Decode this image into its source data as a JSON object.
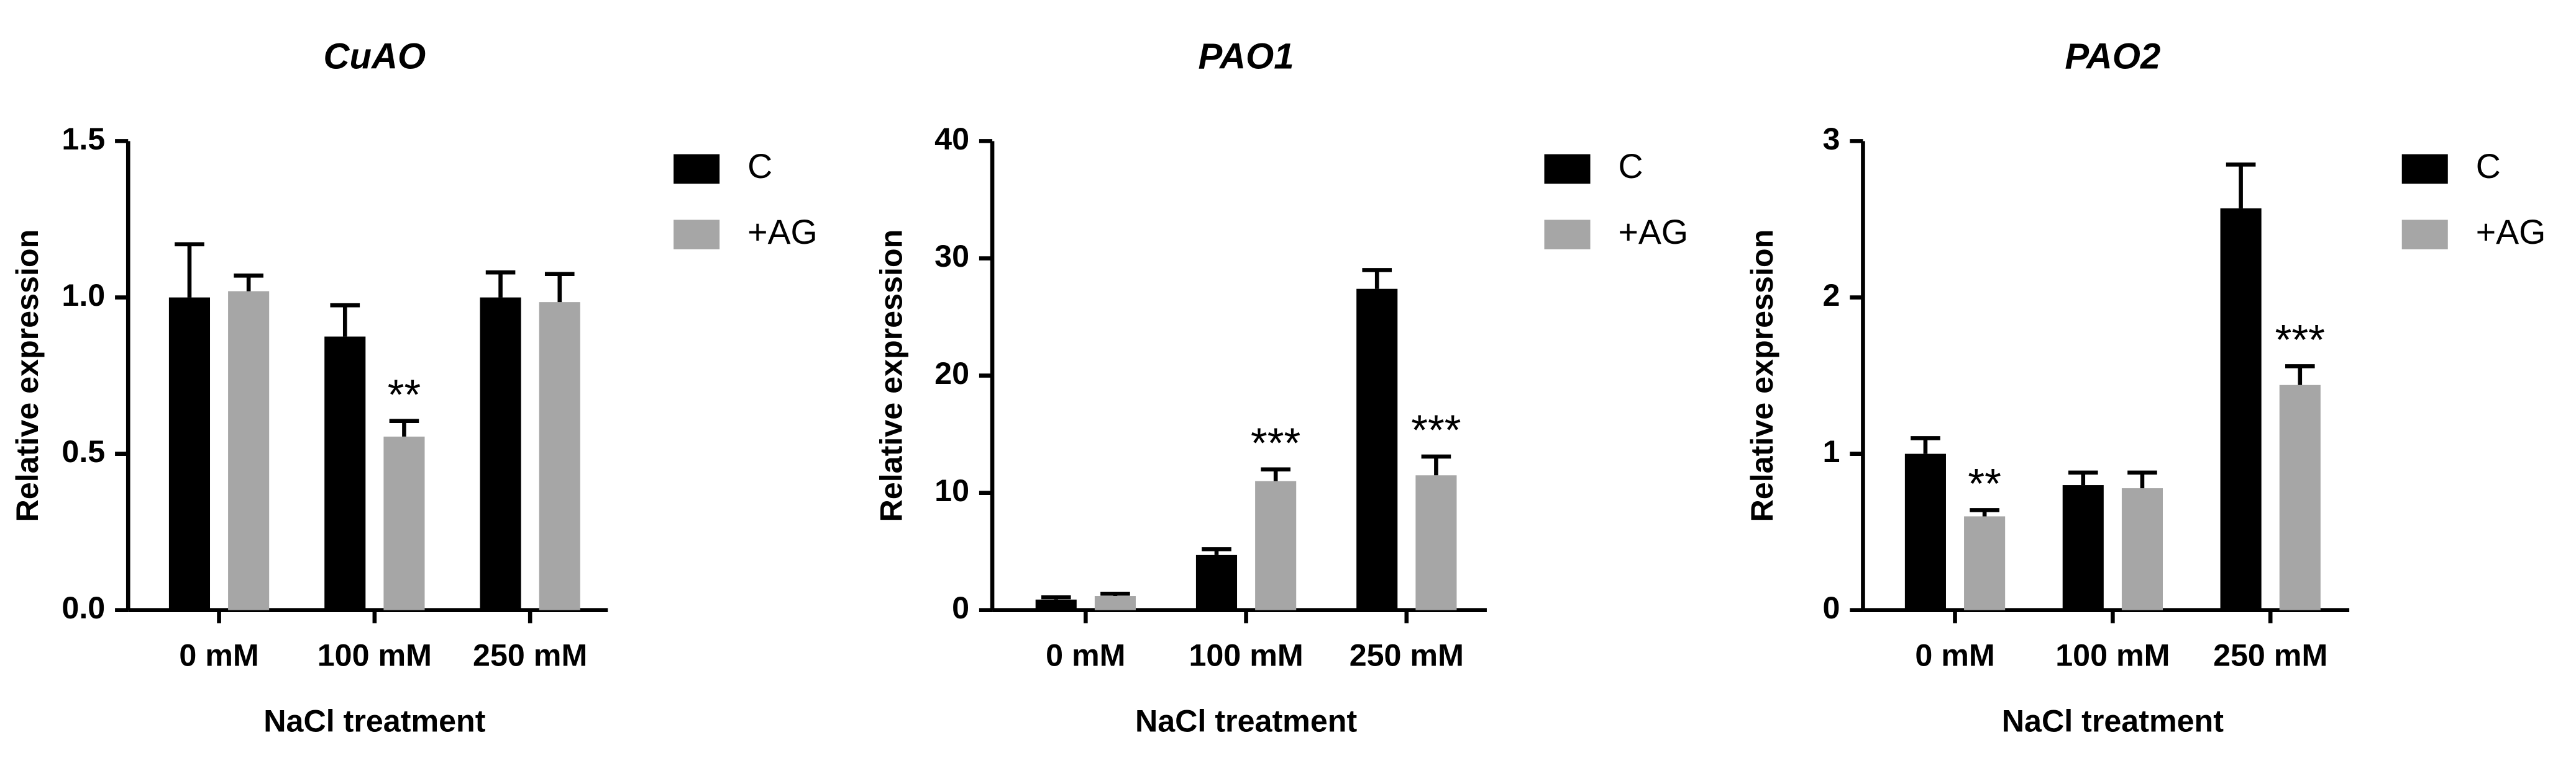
{
  "chart_data": [
    {
      "type": "bar",
      "title": "CuAO",
      "x_label": "NaCl treatment",
      "y_label": "Relative expression",
      "categories": [
        "0 mM",
        "100 mM",
        "250 mM"
      ],
      "series": [
        {
          "name": "C",
          "color": "#000000",
          "values": [
            1.0,
            0.875,
            1.0
          ],
          "errors": [
            0.17,
            0.1,
            0.08
          ],
          "significance": [
            null,
            null,
            null
          ]
        },
        {
          "name": "+AG",
          "color": "#a6a6a6",
          "values": [
            1.02,
            0.555,
            0.985
          ],
          "errors": [
            0.05,
            0.05,
            0.09
          ],
          "significance": [
            null,
            "**",
            null
          ]
        }
      ],
      "ylim": [
        0,
        1.5
      ],
      "yticks": [
        {
          "value": 0,
          "label": "0.0"
        },
        0.5,
        {
          "value": 1,
          "label": "1.0"
        },
        1.5
      ],
      "legend": "right"
    },
    {
      "type": "bar",
      "title": "PAO1",
      "x_label": "NaCl treatment",
      "y_label": "Relative expression",
      "categories": [
        "0 mM",
        "100 mM",
        "250 mM"
      ],
      "series": [
        {
          "name": "C",
          "color": "#000000",
          "values": [
            0.9,
            4.7,
            27.4
          ],
          "errors": [
            0.2,
            0.5,
            1.6
          ],
          "significance": [
            null,
            null,
            null
          ]
        },
        {
          "name": "+AG",
          "color": "#a6a6a6",
          "values": [
            1.2,
            11.0,
            11.5
          ],
          "errors": [
            0.2,
            1.0,
            1.6
          ],
          "significance": [
            null,
            "***",
            "***"
          ]
        }
      ],
      "ylim": [
        0,
        40
      ],
      "yticks": [
        0,
        10,
        20,
        30,
        40
      ],
      "legend": "right"
    },
    {
      "type": "bar",
      "title": "PAO2",
      "x_label": "NaCl treatment",
      "y_label": "Relative expression",
      "categories": [
        "0 mM",
        "100 mM",
        "250 mM"
      ],
      "series": [
        {
          "name": "C",
          "color": "#000000",
          "values": [
            1.0,
            0.8,
            2.57
          ],
          "errors": [
            0.1,
            0.08,
            0.28
          ],
          "significance": [
            null,
            null,
            null
          ]
        },
        {
          "name": "+AG",
          "color": "#a6a6a6",
          "values": [
            0.6,
            0.78,
            1.44
          ],
          "errors": [
            0.04,
            0.1,
            0.12
          ],
          "significance": [
            "**",
            null,
            "***"
          ]
        }
      ],
      "ylim": [
        0,
        3
      ],
      "yticks": [
        0,
        1,
        2,
        3
      ],
      "legend": "right"
    }
  ]
}
